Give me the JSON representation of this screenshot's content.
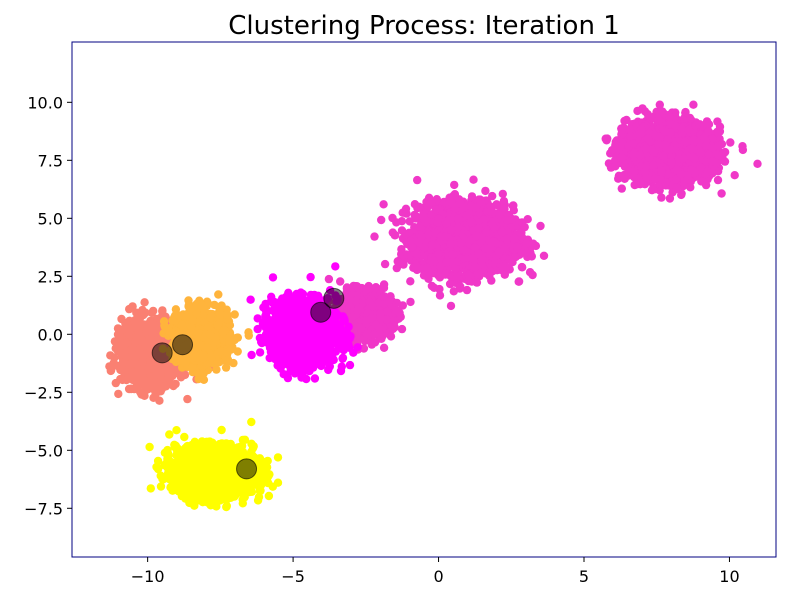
{
  "chart_data": {
    "type": "scatter",
    "title": "Clustering Process: Iteration 1",
    "xlabel": "",
    "ylabel": "",
    "xlim": [
      -12.6,
      11.6
    ],
    "ylim": [
      -9.6,
      12.6
    ],
    "xticks": [
      -10,
      -5,
      0,
      5,
      10
    ],
    "xtick_labels": [
      "−10",
      "−5",
      "0",
      "5",
      "10"
    ],
    "yticks": [
      -7.5,
      -5.0,
      -2.5,
      0.0,
      2.5,
      5.0,
      7.5,
      10.0
    ],
    "ytick_labels": [
      "−7.5",
      "−5.0",
      "−2.5",
      "0.0",
      "2.5",
      "5.0",
      "7.5",
      "10.0"
    ],
    "grid": false,
    "legend": "none",
    "point_clouds": [
      {
        "color": "#f038c8",
        "center": [
          0.9,
          4.1
        ],
        "spread": [
          1.5,
          1.3
        ],
        "count": 2500
      },
      {
        "color": "#f038c8",
        "center": [
          7.9,
          7.9
        ],
        "spread": [
          1.3,
          1.1
        ],
        "count": 2500
      },
      {
        "color": "#f038c8",
        "center": [
          -2.6,
          0.8
        ],
        "spread": [
          0.9,
          0.9
        ],
        "count": 900
      },
      {
        "color": "#ff00ff",
        "center": [
          -4.6,
          0.1
        ],
        "spread": [
          1.0,
          1.2
        ],
        "count": 2000
      },
      {
        "color": "#fa8072",
        "center": [
          -9.9,
          -0.8
        ],
        "spread": [
          0.9,
          1.2
        ],
        "count": 1500
      },
      {
        "color": "#ffb43c",
        "center": [
          -8.1,
          -0.1
        ],
        "spread": [
          0.8,
          1.0
        ],
        "count": 1300
      },
      {
        "color": "#ffff00",
        "center": [
          -7.7,
          -5.9
        ],
        "spread": [
          1.2,
          0.9
        ],
        "count": 2500
      }
    ],
    "centroids": [
      {
        "x": -9.5,
        "y": -0.8
      },
      {
        "x": -8.8,
        "y": -0.45
      },
      {
        "x": -6.6,
        "y": -5.8
      },
      {
        "x": -4.05,
        "y": 0.95
      },
      {
        "x": -3.6,
        "y": 1.55
      }
    ],
    "centroid_style": {
      "fill": "#000000",
      "opacity": 0.5
    }
  }
}
